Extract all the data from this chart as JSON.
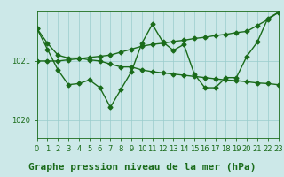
{
  "bg_color": "#cce8e8",
  "grid_color": "#99cccc",
  "line_color": "#1a6b1a",
  "marker_color": "#1a6b1a",
  "title": "Graphe pression niveau de la mer (hPa)",
  "xlim": [
    0,
    23
  ],
  "ylim": [
    1019.7,
    1021.85
  ],
  "yticks": [
    1020,
    1021
  ],
  "xticks": [
    0,
    1,
    2,
    3,
    4,
    5,
    6,
    7,
    8,
    9,
    10,
    11,
    12,
    13,
    14,
    15,
    16,
    17,
    18,
    19,
    20,
    21,
    22,
    23
  ],
  "line1_x": [
    0,
    1,
    2,
    3,
    4,
    5,
    6,
    7,
    8,
    9,
    10,
    11,
    12,
    13,
    14,
    15,
    16,
    17,
    18,
    19,
    20,
    21,
    22,
    23
  ],
  "line1_y": [
    1021.55,
    1021.3,
    1021.1,
    1021.05,
    1021.05,
    1021.02,
    1021.0,
    1020.95,
    1020.9,
    1020.9,
    1020.85,
    1020.82,
    1020.8,
    1020.78,
    1020.76,
    1020.74,
    1020.72,
    1020.7,
    1020.68,
    1020.67,
    1020.65,
    1020.63,
    1020.62,
    1020.6
  ],
  "line2_x": [
    0,
    1,
    2,
    3,
    4,
    5,
    6,
    7,
    8,
    9,
    10,
    11,
    12,
    13,
    14,
    15,
    16,
    17,
    18,
    19,
    20,
    21,
    22,
    23
  ],
  "line2_y": [
    1021.0,
    1021.0,
    1021.0,
    1021.02,
    1021.04,
    1021.06,
    1021.08,
    1021.1,
    1021.15,
    1021.2,
    1021.25,
    1021.28,
    1021.3,
    1021.33,
    1021.35,
    1021.38,
    1021.4,
    1021.43,
    1021.45,
    1021.48,
    1021.5,
    1021.6,
    1021.7,
    1021.82
  ],
  "line3_x": [
    0,
    1,
    2,
    3,
    4,
    5,
    6,
    7,
    8,
    9,
    10,
    11,
    12,
    13,
    14,
    15,
    16,
    17,
    18,
    19,
    20,
    21,
    22,
    23
  ],
  "line3_y": [
    1021.55,
    1021.2,
    1020.85,
    1020.6,
    1020.62,
    1020.68,
    1020.55,
    1020.22,
    1020.52,
    1020.82,
    1021.3,
    1021.62,
    1021.32,
    1021.18,
    1021.28,
    1020.78,
    1020.55,
    1020.55,
    1020.72,
    1020.72,
    1021.08,
    1021.32,
    1021.72,
    1021.82
  ],
  "title_fontsize": 8,
  "tick_fontsize": 6,
  "marker_size": 2.5,
  "linewidth": 1.0
}
